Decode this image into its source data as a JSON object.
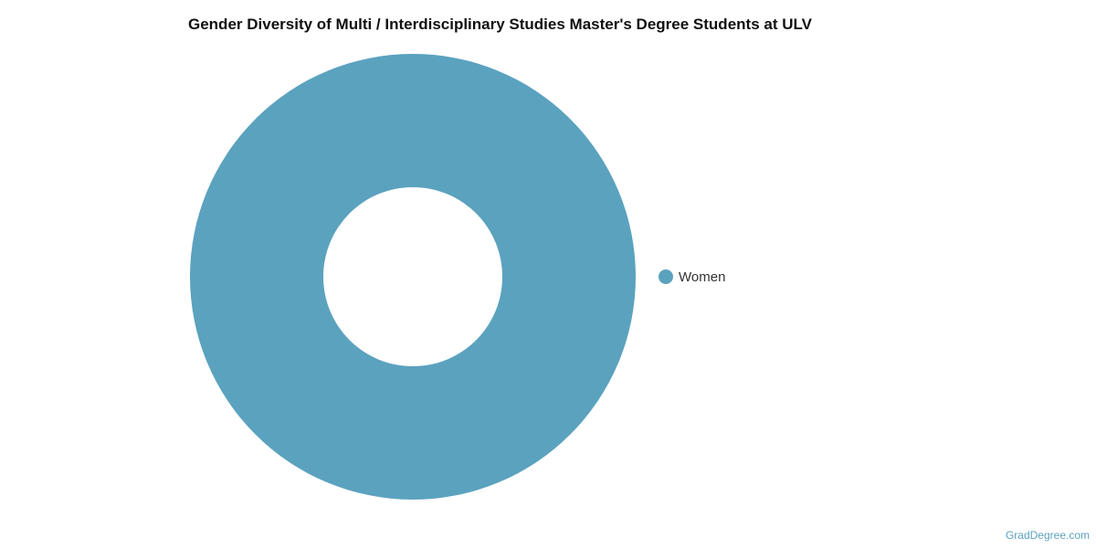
{
  "chart_data": {
    "type": "pie",
    "variant": "donut",
    "title": "Gender Diversity of Multi / Interdisciplinary Studies Master's Degree Students at ULV",
    "categories": [
      "Women"
    ],
    "values": [
      100
    ],
    "colors": [
      "#5ba2bf"
    ],
    "legend": {
      "position": "right",
      "entries": [
        "Women"
      ]
    }
  },
  "credit": "GradDegree.com"
}
